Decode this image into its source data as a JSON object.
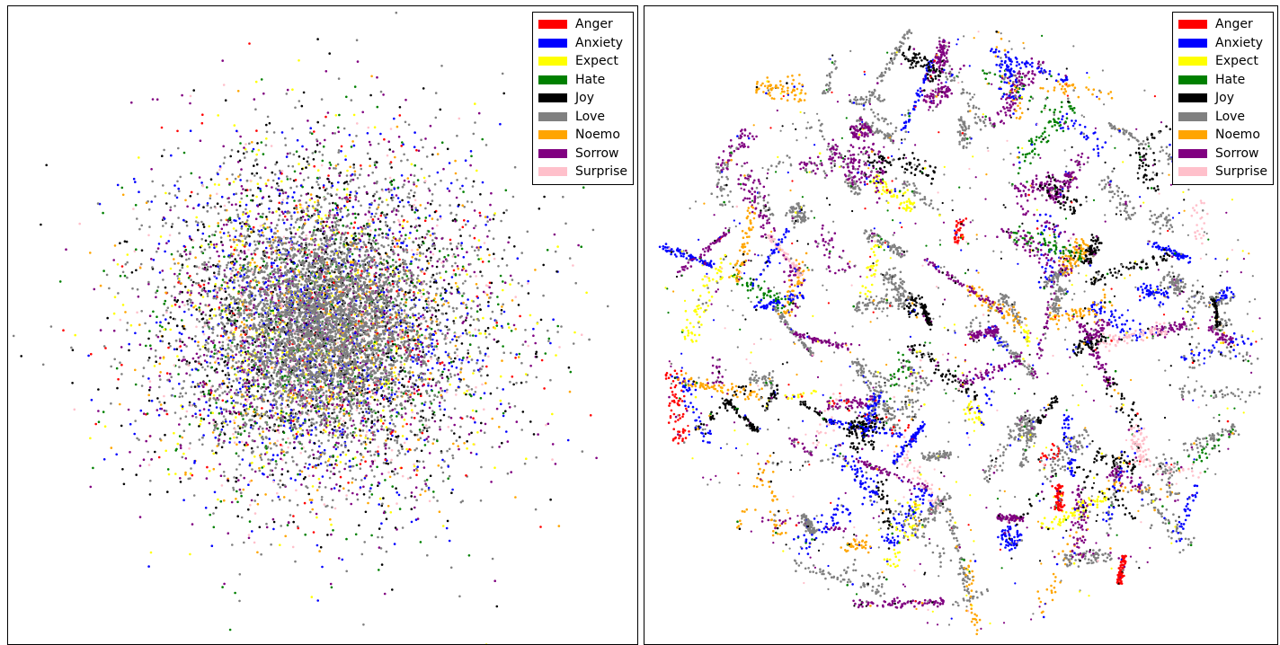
{
  "legend": {
    "items": [
      {
        "label": "Anger",
        "color": "#ff0000"
      },
      {
        "label": "Anxiety",
        "color": "#0000ff"
      },
      {
        "label": "Expect",
        "color": "#ffff00"
      },
      {
        "label": "Hate",
        "color": "#008000"
      },
      {
        "label": "Joy",
        "color": "#000000"
      },
      {
        "label": "Love",
        "color": "#808080"
      },
      {
        "label": "Noemo",
        "color": "#ffa500"
      },
      {
        "label": "Sorrow",
        "color": "#800080"
      },
      {
        "label": "Surprise",
        "color": "#ffc0cb"
      }
    ]
  },
  "chart_data": [
    {
      "type": "scatter",
      "title": "",
      "xlabel": "",
      "ylabel": "",
      "grid": false,
      "axes_ticks": false,
      "legend_placement": "top-right",
      "series_names": [
        "Anger",
        "Anxiety",
        "Expect",
        "Hate",
        "Joy",
        "Love",
        "Noemo",
        "Sorrow",
        "Surprise"
      ],
      "structure": "single dense isotropic cloud, all classes mixed",
      "x": [
        -3.6,
        3.6
      ],
      "y": [
        -3.6,
        3.6
      ],
      "cloud": {
        "center": [
          0.0,
          0.0
        ],
        "spread": 1.0
      }
    },
    {
      "type": "scatter",
      "title": "",
      "xlabel": "",
      "ylabel": "",
      "grid": false,
      "axes_ticks": false,
      "legend_placement": "top-right",
      "series_names": [
        "Anger",
        "Anxiety",
        "Expect",
        "Hate",
        "Joy",
        "Love",
        "Noemo",
        "Sorrow",
        "Surprise"
      ],
      "structure": "many small elongated class clusters arranged in a roughly circular region",
      "x": [
        -1.0,
        1.0
      ],
      "y": [
        -1.0,
        1.0
      ]
    }
  ]
}
